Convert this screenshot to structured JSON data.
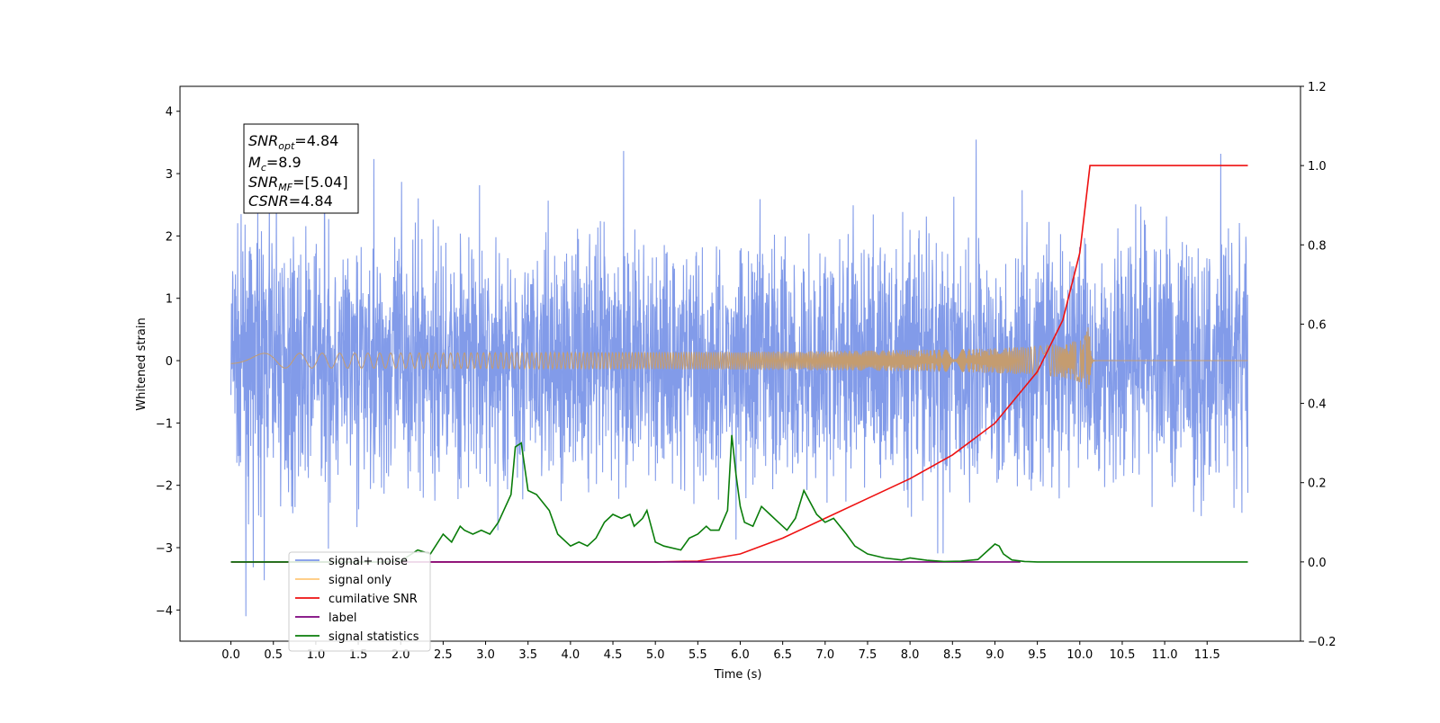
{
  "chart_data": {
    "type": "line",
    "xlabel": "Time (s)",
    "ylabel": "Whitened strain",
    "xlim": [
      -0.6,
      12.6
    ],
    "ylim": [
      -4.5,
      4.4
    ],
    "y2lim": [
      -0.2,
      1.2
    ],
    "x_ticks": [
      "0.0",
      "0.5",
      "1.0",
      "1.5",
      "2.0",
      "2.5",
      "3.0",
      "3.5",
      "4.0",
      "4.5",
      "5.0",
      "5.5",
      "6.0",
      "6.5",
      "7.0",
      "7.5",
      "8.0",
      "8.5",
      "9.0",
      "9.5",
      "10.0",
      "10.5",
      "11.0",
      "11.5"
    ],
    "y_ticks": [
      "4",
      "3",
      "2",
      "1",
      "0",
      "−1",
      "−2",
      "−3",
      "−4"
    ],
    "y2_ticks": [
      "1.2",
      "1.0",
      "0.8",
      "0.6",
      "0.4",
      "0.2",
      "0.0",
      "−0.2"
    ],
    "grid": false,
    "legend_position": "bottom-left",
    "annotation": {
      "snr_opt": {
        "sym": "SNR",
        "sub": "opt",
        "value": "=4.84"
      },
      "mc": {
        "sym": "M",
        "sub": "c",
        "value": "=8.9"
      },
      "snr_mf": {
        "sym": "SNR",
        "sub": "MF",
        "value": "=[5.04]"
      },
      "csnr": {
        "sym": "CSNR",
        "value": "=4.84"
      }
    },
    "series": [
      {
        "name": "signal+ noise",
        "color": "#7b96e8",
        "axis": "left",
        "kind": "noise",
        "x_range": [
          0,
          11.98
        ],
        "y_range": [
          -4.1,
          4.0
        ]
      },
      {
        "name": "signal only",
        "color": "#c49c70",
        "axis": "left",
        "kind": "chirp",
        "x_range": [
          0,
          11.98
        ],
        "merger_time": 10.12,
        "peak_amplitude": 0.55
      },
      {
        "name": "cumilative SNR",
        "color": "#ee1111",
        "axis": "right",
        "x": [
          0,
          5.0,
          5.5,
          6.0,
          6.5,
          7.0,
          7.5,
          8.0,
          8.5,
          9.0,
          9.5,
          9.8,
          10.0,
          10.12,
          10.2,
          11.5,
          11.98
        ],
        "y": [
          0,
          0,
          0.002,
          0.02,
          0.06,
          0.11,
          0.16,
          0.21,
          0.27,
          0.35,
          0.48,
          0.61,
          0.78,
          1.0,
          1.0,
          1.0,
          1.0
        ]
      },
      {
        "name": "label",
        "color": "#7b007b",
        "axis": "right",
        "x": [
          0,
          9.3
        ],
        "y": [
          0,
          0
        ]
      },
      {
        "name": "signal statistics",
        "color": "#0a7d0a",
        "axis": "right",
        "x": [
          0,
          1.8,
          2.0,
          2.2,
          2.35,
          2.5,
          2.6,
          2.7,
          2.75,
          2.85,
          2.95,
          3.05,
          3.15,
          3.3,
          3.35,
          3.42,
          3.5,
          3.6,
          3.75,
          3.85,
          4.0,
          4.1,
          4.2,
          4.3,
          4.4,
          4.5,
          4.6,
          4.7,
          4.75,
          4.85,
          4.9,
          5.0,
          5.1,
          5.3,
          5.4,
          5.5,
          5.6,
          5.65,
          5.75,
          5.85,
          5.9,
          5.95,
          6.0,
          6.05,
          6.15,
          6.25,
          6.35,
          6.45,
          6.55,
          6.65,
          6.75,
          6.9,
          7.0,
          7.1,
          7.25,
          7.35,
          7.5,
          7.7,
          7.9,
          8.0,
          8.2,
          8.4,
          8.6,
          8.8,
          9.0,
          9.05,
          9.1,
          9.2,
          9.35,
          9.5,
          11.98
        ],
        "y": [
          0,
          0,
          0.002,
          0.03,
          0.02,
          0.07,
          0.05,
          0.09,
          0.08,
          0.07,
          0.08,
          0.07,
          0.1,
          0.17,
          0.29,
          0.3,
          0.18,
          0.17,
          0.13,
          0.07,
          0.04,
          0.05,
          0.04,
          0.06,
          0.1,
          0.12,
          0.11,
          0.12,
          0.09,
          0.11,
          0.13,
          0.05,
          0.04,
          0.03,
          0.06,
          0.07,
          0.09,
          0.08,
          0.08,
          0.13,
          0.32,
          0.22,
          0.14,
          0.1,
          0.09,
          0.14,
          0.12,
          0.1,
          0.08,
          0.11,
          0.18,
          0.12,
          0.1,
          0.11,
          0.07,
          0.04,
          0.02,
          0.01,
          0.005,
          0.01,
          0.004,
          0.001,
          0.002,
          0.006,
          0.045,
          0.04,
          0.02,
          0.005,
          0.001,
          0,
          0
        ]
      }
    ]
  }
}
